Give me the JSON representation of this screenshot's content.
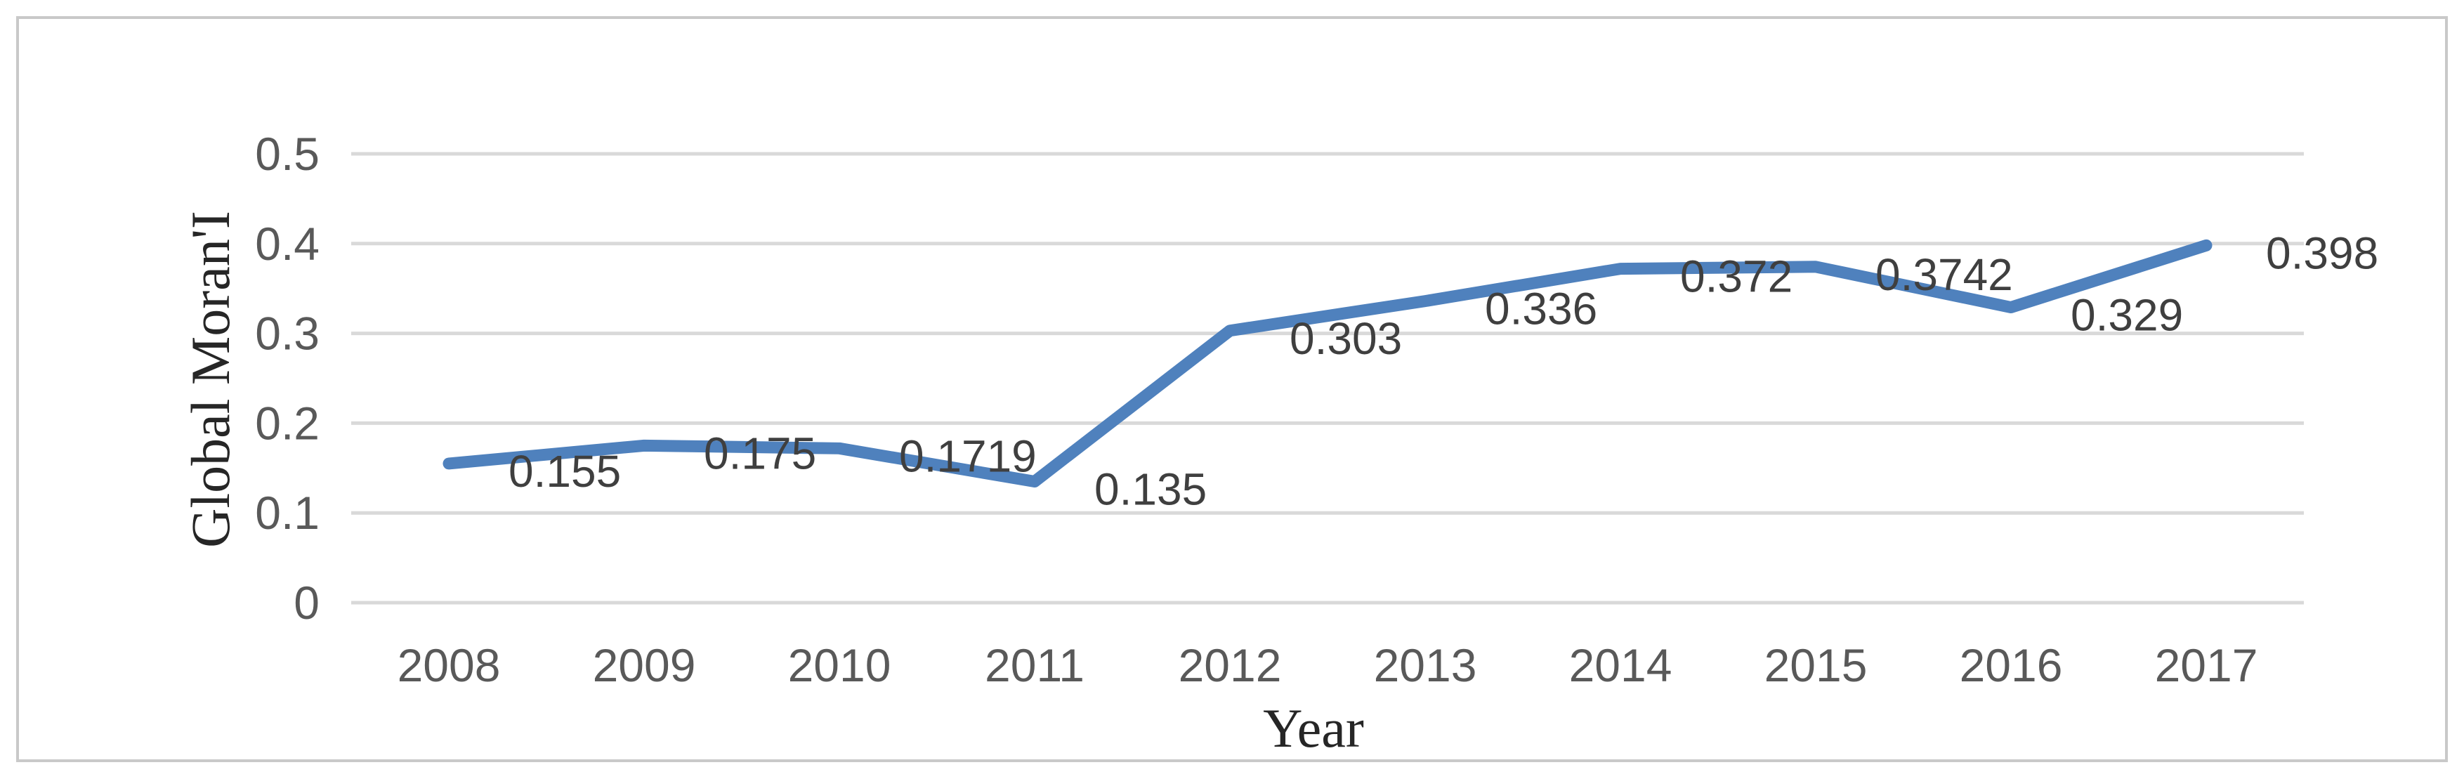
{
  "chart_data": {
    "type": "line",
    "x": [
      "2008",
      "2009",
      "2010",
      "2011",
      "2012",
      "2013",
      "2014",
      "2015",
      "2016",
      "2017"
    ],
    "series": [
      {
        "name": "Global Moran'I",
        "values": [
          0.155,
          0.175,
          0.1719,
          0.135,
          0.303,
          0.336,
          0.372,
          0.3742,
          0.329,
          0.398
        ],
        "point_labels": [
          "0.155",
          "0.175",
          "0.1719",
          "0.135",
          "0.303",
          "0.336",
          "0.372",
          "0.3742",
          "0.329",
          "0.398"
        ]
      }
    ],
    "title": "",
    "xlabel": "Year",
    "ylabel": "Global Moran'I",
    "ylim": [
      0,
      0.5
    ],
    "yticks": [
      {
        "value": 0,
        "label": "0"
      },
      {
        "value": 0.1,
        "label": "0.1"
      },
      {
        "value": 0.2,
        "label": "0.2"
      },
      {
        "value": 0.3,
        "label": "0.3"
      },
      {
        "value": 0.4,
        "label": "0.4"
      },
      {
        "value": 0.5,
        "label": "0.5"
      }
    ],
    "grid": true,
    "legend_position": "none"
  },
  "colors": {
    "line": "#4F81BD",
    "gridline": "#D9D9D9",
    "tick_label": "#595959",
    "data_label": "#3F3F3F",
    "axis_title": "#262626",
    "border": "#C9C9C9",
    "background": "#FFFFFF"
  }
}
